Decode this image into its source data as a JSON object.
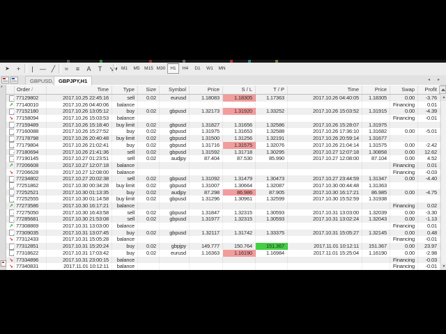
{
  "toolbar": {
    "drawing_tools": [
      {
        "name": "cursor",
        "glyph": "➤"
      },
      {
        "name": "crosshair",
        "glyph": "+"
      },
      {
        "name": "vertical-line",
        "glyph": "|"
      },
      {
        "name": "horizontal-line",
        "glyph": "—"
      },
      {
        "name": "trendline",
        "glyph": "╱"
      },
      {
        "name": "fibonacci",
        "glyph": "≈"
      },
      {
        "name": "channel",
        "glyph": "≡"
      },
      {
        "name": "text",
        "glyph": "A"
      },
      {
        "name": "label",
        "glyph": "T"
      },
      {
        "name": "arrows",
        "glyph": "↘▾"
      }
    ],
    "timeframes": [
      "M1",
      "M5",
      "M15",
      "M30",
      "H1",
      "H4",
      "D1",
      "W1",
      "MN"
    ],
    "active_timeframe": "H1"
  },
  "chart_tabs": {
    "tabs": [
      {
        "label": "GBPUSD,M30",
        "active": false
      },
      {
        "label": "GBPJPY,H1",
        "active": true
      }
    ],
    "scroll_left": "◂",
    "scroll_right": "▸"
  },
  "history_table": {
    "columns": [
      {
        "key": "icon",
        "label": ""
      },
      {
        "key": "order",
        "label": "Order",
        "sorted": true,
        "sort_glyph": "/"
      },
      {
        "key": "open_time",
        "label": "Time"
      },
      {
        "key": "type",
        "label": "Type"
      },
      {
        "key": "size",
        "label": "Size"
      },
      {
        "key": "symbol",
        "label": "Symbol"
      },
      {
        "key": "price",
        "label": "Price"
      },
      {
        "key": "sl",
        "label": "S / L"
      },
      {
        "key": "tp",
        "label": "T / P"
      },
      {
        "key": "close_time",
        "label": "Time"
      },
      {
        "key": "close_price",
        "label": "Price"
      },
      {
        "key": "swap",
        "label": "Swap"
      },
      {
        "key": "profit",
        "label": "Profit"
      }
    ],
    "rows": [
      {
        "order": "77129802",
        "open_time": "2017.10.25 22:45:16",
        "type": "sell",
        "size": "0.02",
        "symbol": "eurusd",
        "price": "1.18083",
        "sl": "1.18305",
        "sl_hit": true,
        "tp": "1.17363",
        "close_time": "2017.10.26 04:40:05",
        "close_price": "1.18305",
        "swap": "0.00",
        "profit": "-3.76"
      },
      {
        "order": "77140010",
        "open_time": "2017.10.26 04:40:06",
        "type": "balance",
        "size": "",
        "symbol": "",
        "price": "",
        "sl": "",
        "tp": "",
        "close_time": "",
        "close_price": "",
        "swap": "Financing",
        "profit": "0.01"
      },
      {
        "order": "77152180",
        "open_time": "2017.10.26 13:05:12",
        "type": "buy",
        "size": "0.02",
        "symbol": "gbpusd",
        "price": "1.32173",
        "sl": "1.31920",
        "sl_hit": true,
        "tp": "1.33252",
        "close_time": "2017.10.26 15:03:52",
        "close_price": "1.31915",
        "swap": "0.00",
        "profit": "-4.39"
      },
      {
        "order": "77158094",
        "open_time": "2017.10.26 15:03:53",
        "type": "balance",
        "size": "",
        "symbol": "",
        "price": "",
        "sl": "",
        "tp": "",
        "close_time": "",
        "close_price": "",
        "swap": "Financing",
        "profit": "-0.01"
      },
      {
        "order": "77159489",
        "open_time": "2017.10.26 15:18:40",
        "type": "buy limit",
        "size": "0.02",
        "symbol": "gbpusd",
        "price": "1.31827",
        "sl": "1.31656",
        "tp": "1.32586",
        "close_time": "2017.10.26 15:28:07",
        "close_price": "1.31975",
        "swap": "",
        "profit": ""
      },
      {
        "order": "77160088",
        "open_time": "2017.10.26 15:27:52",
        "type": "buy",
        "size": "0.02",
        "symbol": "gbpusd",
        "price": "1.31975",
        "sl": "1.31653",
        "tp": "1.32588",
        "close_time": "2017.10.26 17:36:10",
        "close_price": "1.31682",
        "swap": "0.00",
        "profit": "-5.01"
      },
      {
        "order": "77178798",
        "open_time": "2017.10.26 20:40:48",
        "type": "buy limit",
        "size": "0.02",
        "symbol": "gbpusd",
        "price": "1.31500",
        "sl": "1.31256",
        "tp": "1.32191",
        "close_time": "2017.10.26 20:59:14",
        "close_price": "1.31677",
        "swap": "",
        "profit": ""
      },
      {
        "order": "77179804",
        "open_time": "2017.10.26 21:02:41",
        "type": "buy",
        "size": "0.02",
        "symbol": "gbpusd",
        "price": "1.31716",
        "sl": "1.31575",
        "sl_hit": true,
        "tp": "1.32076",
        "close_time": "2017.10.26 21:04:14",
        "close_price": "1.31575",
        "swap": "0.00",
        "profit": "-2.42"
      },
      {
        "order": "77180694",
        "open_time": "2017.10.26 21:41:36",
        "type": "sell",
        "size": "0.02",
        "symbol": "gbpusd",
        "price": "1.31592",
        "sl": "1.31718",
        "tp": "1.30295",
        "close_time": "2017.10.27 12:07:18",
        "close_price": "1.30858",
        "swap": "0.00",
        "profit": "12.62"
      },
      {
        "order": "77190145",
        "open_time": "2017.10.27 01:23:51",
        "type": "sell",
        "size": "0.02",
        "symbol": "audjpy",
        "price": "87.404",
        "sl": "87.530",
        "tp": "85.990",
        "close_time": "2017.10.27 12:08:00",
        "close_price": "87.104",
        "swap": "0.00",
        "profit": "4.52"
      },
      {
        "order": "77206608",
        "open_time": "2017.10.27 12:07:18",
        "type": "balance",
        "size": "",
        "symbol": "",
        "price": "",
        "sl": "",
        "tp": "",
        "close_time": "",
        "close_price": "",
        "swap": "Financing",
        "profit": "0.01"
      },
      {
        "order": "77206628",
        "open_time": "2017.10.27 12:08:00",
        "type": "balance",
        "size": "",
        "symbol": "",
        "price": "",
        "sl": "",
        "tp": "",
        "close_time": "",
        "close_price": "",
        "swap": "Financing",
        "profit": "-0.03"
      },
      {
        "order": "77234802",
        "open_time": "2017.10.27 20:02:38",
        "type": "sell",
        "size": "0.02",
        "symbol": "gbpusd",
        "price": "1.31092",
        "sl": "1.31479",
        "tp": "1.30473",
        "close_time": "2017.10.27 23:44:59",
        "close_price": "1.31347",
        "swap": "0.00",
        "profit": "-4.40"
      },
      {
        "order": "77251862",
        "open_time": "2017.10.30 00:34:28",
        "type": "buy limit",
        "size": "0.02",
        "symbol": "gbpusd",
        "price": "1.31007",
        "sl": "1.30664",
        "tp": "1.32087",
        "close_time": "2017.10.30 00:44:48",
        "close_price": "1.31363",
        "swap": "",
        "profit": ""
      },
      {
        "order": "77252521",
        "open_time": "2017.10.30 01:13:35",
        "type": "buy",
        "size": "0.02",
        "symbol": "audjpy",
        "price": "87.298",
        "sl": "86.986",
        "sl_hit": true,
        "tp": "87.905",
        "close_time": "2017.10.30 16:17:21",
        "close_price": "86.985",
        "swap": "0.00",
        "profit": "-4.75"
      },
      {
        "order": "77252555",
        "open_time": "2017.10.30 01:14:58",
        "type": "buy limit",
        "size": "0.02",
        "symbol": "gbpusd",
        "price": "1.31296",
        "sl": "1.30961",
        "tp": "1.32599",
        "close_time": "2017.10.30 15:52:59",
        "close_price": "1.31938",
        "swap": "",
        "profit": ""
      },
      {
        "order": "77273586",
        "open_time": "2017.10.30 16:17:21",
        "type": "balance",
        "size": "",
        "symbol": "",
        "price": "",
        "sl": "",
        "tp": "",
        "close_time": "",
        "close_price": "",
        "swap": "Financing",
        "profit": "0.02"
      },
      {
        "order": "77275050",
        "open_time": "2017.10.30 16:43:58",
        "type": "sell",
        "size": "0.02",
        "symbol": "gbpusd",
        "price": "1.31847",
        "sl": "1.32315",
        "tp": "1.30593",
        "close_time": "2017.10.31 13:03:00",
        "close_price": "1.32039",
        "swap": "0.00",
        "profit": "-3.30"
      },
      {
        "order": "77285681",
        "open_time": "2017.10.30 21:53:08",
        "type": "sell",
        "size": "0.02",
        "symbol": "gbpusd",
        "price": "1.31977",
        "sl": "1.32315",
        "tp": "1.30593",
        "close_time": "2017.10.31 13:02:24",
        "close_price": "1.32043",
        "swap": "0.00",
        "profit": "-1.13"
      },
      {
        "order": "77308869",
        "open_time": "2017.10.31 13:03:00",
        "type": "balance",
        "size": "",
        "symbol": "",
        "price": "",
        "sl": "",
        "tp": "",
        "close_time": "",
        "close_price": "",
        "swap": "Financing",
        "profit": "0.01"
      },
      {
        "order": "77309035",
        "open_time": "2017.10.31 13:07:45",
        "type": "buy",
        "size": "0.02",
        "symbol": "gbpusd",
        "price": "1.32117",
        "sl": "1.31742",
        "tp": "1.33375",
        "close_time": "2017.10.31 15:05:27",
        "close_price": "1.32145",
        "swap": "0.00",
        "profit": "0.48"
      },
      {
        "order": "77312433",
        "open_time": "2017.10.31 15:05:28",
        "type": "balance",
        "size": "",
        "symbol": "",
        "price": "",
        "sl": "",
        "tp": "",
        "close_time": "",
        "close_price": "",
        "swap": "Financing",
        "profit": "-0.01"
      },
      {
        "order": "77312851",
        "open_time": "2017.10.31 15:20:24",
        "type": "buy",
        "size": "0.02",
        "symbol": "gbpjpy",
        "price": "149.777",
        "sl": "150.764",
        "tp": "151.367",
        "tp_hit": true,
        "close_time": "2017.11.01 10:12:11",
        "close_price": "151.367",
        "swap": "0.00",
        "profit": "23.97"
      },
      {
        "order": "77318622",
        "open_time": "2017.10.31 17:03:42",
        "type": "buy",
        "size": "0.02",
        "symbol": "eurusd",
        "price": "1.16363",
        "sl": "1.16190",
        "sl_hit": true,
        "tp": "1.16984",
        "close_time": "2017.11.01 15:25:04",
        "close_price": "1.16190",
        "swap": "0.00",
        "profit": "-2.98"
      },
      {
        "order": "77334896",
        "open_time": "2017.10.31 23:00:15",
        "type": "balance",
        "size": "",
        "symbol": "",
        "price": "",
        "sl": "",
        "tp": "",
        "close_time": "",
        "close_price": "",
        "swap": "Financing",
        "profit": "-0.03"
      },
      {
        "order": "77340831",
        "open_time": "2017.11.01 10:12:11",
        "type": "balance",
        "size": "",
        "symbol": "",
        "price": "",
        "sl": "",
        "tp": "",
        "close_time": "",
        "close_price": "",
        "swap": "Financing",
        "profit": "-0.01"
      }
    ]
  },
  "colors": {
    "sl_hit_bg": "#f29c9c",
    "tp_hit_bg": "#44cf44",
    "row_stripe": "#efefef",
    "buy_icon": "#1465c8",
    "sell_icon": "#cc2222",
    "balance_pos_icon": "#1e9e1e",
    "balance_neg_icon": "#cc2222"
  }
}
